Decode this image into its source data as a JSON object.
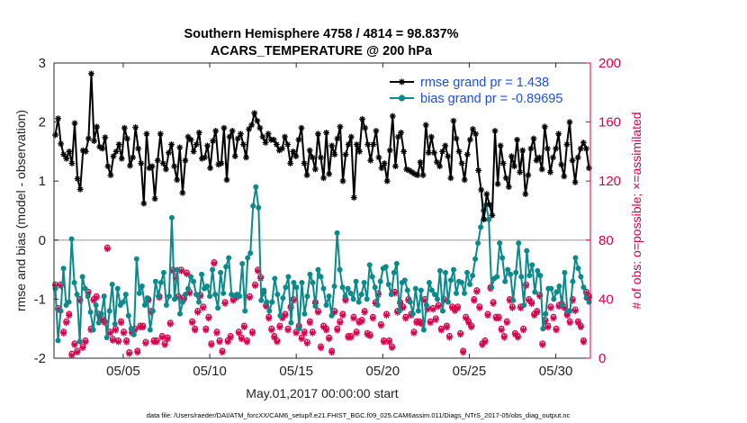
{
  "chart_data": {
    "type": "line",
    "title": "Southern Hemisphere 4758 / 4814 = 98.837%",
    "subtitle": "ACARS_TEMPERATURE @ 200 hPa",
    "xlabel": "May.01,2017 00:00:00 start",
    "ylabel": "rmse and bias (model - observation)",
    "ylabel_right": "# of obs: o=possible; ×=assimilated",
    "x_tick_labels": [
      "05/05",
      "05/10",
      "05/15",
      "05/20",
      "05/25",
      "05/30"
    ],
    "x_tick_days": [
      5,
      10,
      15,
      20,
      25,
      30
    ],
    "xlim": [
      1,
      32
    ],
    "ylim": [
      -2,
      3
    ],
    "y_ticks": [
      "-2",
      "-1",
      "0",
      "1",
      "2",
      "3"
    ],
    "ylim_right": [
      0,
      200
    ],
    "y_ticks_right": [
      "0",
      "40",
      "80",
      "120",
      "160",
      "200"
    ],
    "legend_position": "top-right",
    "colors": {
      "rmse": "#000000",
      "bias": "#0a8a8a",
      "obs": "#d6004c",
      "zero_line": "#b8b8b8"
    },
    "series": [
      {
        "name": "rmse grand pr = 1.438",
        "marker": "star",
        "values": [
          1.78,
          2.06,
          1.63,
          1.45,
          1.38,
          1.5,
          1.3,
          1.98,
          1.04,
          0.86,
          1.52,
          1.5,
          1.72,
          2.82,
          1.68,
          1.92,
          1.58,
          1.55,
          1.74,
          1.25,
          1.1,
          1.42,
          1.5,
          1.62,
          1.38,
          1.9,
          1.72,
          1.26,
          1.4,
          1.91,
          1.55,
          1.3,
          0.62,
          1.8,
          1.22,
          1.25,
          0.7,
          1.35,
          1.8,
          1.3,
          1.2,
          1.48,
          1.62,
          1.25,
          1.02,
          1.57,
          0.8,
          1.35,
          1.75,
          1.7,
          1.5,
          1.62,
          1.82,
          1.38,
          1.4,
          1.6,
          1.22,
          1.68,
          1.85,
          1.28,
          1.3,
          1.9,
          1.02,
          1.75,
          1.85,
          1.42,
          1.72,
          1.8,
          1.62,
          1.4,
          1.88,
          1.95,
          2.15,
          2.02,
          1.9,
          1.75,
          1.65,
          1.8,
          1.7,
          1.7,
          1.62,
          1.52,
          1.55,
          1.75,
          1.62,
          1.3,
          1.5,
          1.42,
          1.7,
          1.9,
          1.3,
          1.1,
          1.52,
          1.4,
          1.2,
          1.8,
          1.4,
          1.05,
          1.82,
          1.12,
          1.6,
          1.45,
          1.72,
          1.92,
          1.0,
          1.45,
          1.62,
          1.75,
          0.72,
          1.62,
          1.5,
          2.05,
          1.9,
          1.62,
          1.35,
          1.62,
          1.85,
          1.4,
          1.22,
          1.3,
          1.0,
          1.52,
          2.1,
          1.25,
          1.75,
          1.82,
          1.5,
          1.2,
          1.18,
          1.15,
          1.12,
          1.1,
          1.32,
          1.1,
          1.95,
          1.48,
          1.75,
          1.48,
          1.32,
          1.25,
          1.5,
          1.6,
          1.42,
          1.05,
          2.02,
          1.72,
          1.5,
          1.3,
          1.02,
          1.45,
          1.7,
          1.88,
          1.8,
          1.18,
          0.85,
          0.35,
          0.78,
          0.6,
          0.42,
          1.85,
          0.95,
          1.6,
          1.3,
          1.05,
          0.9,
          1.42,
          1.25,
          1.7,
          1.15,
          1.52,
          0.78,
          1.1,
          1.55,
          1.72,
          1.35,
          1.4,
          1.2,
          1.92,
          1.55,
          1.15,
          1.4,
          1.55,
          1.8,
          1.28,
          1.08,
          1.62,
          2.0,
          1.35,
          0.98,
          1.4,
          1.55,
          1.65,
          1.55,
          1.22
        ]
      },
      {
        "name": "bias grand pr = -0.89695",
        "marker": "dot",
        "values": [
          -0.82,
          -1.7,
          -1.2,
          -0.48,
          -1.1,
          -1.05,
          0.02,
          -0.72,
          -0.92,
          -1.72,
          -0.62,
          -0.82,
          -0.95,
          -1.22,
          -1.52,
          -1.1,
          -1.4,
          -1.25,
          -0.95,
          -1.65,
          -1.2,
          -0.75,
          -1.42,
          -0.82,
          -1.1,
          -1.05,
          -0.92,
          -1.28,
          -1.5,
          -1.6,
          -0.32,
          -0.9,
          -0.78,
          -1.1,
          -0.98,
          -1.52,
          -1.2,
          -0.7,
          -0.95,
          -0.72,
          -0.55,
          -1.1,
          -0.95,
          0.38,
          -1.0,
          -0.5,
          -1.25,
          -1.05,
          -0.92,
          -0.82,
          -0.62,
          -0.7,
          -0.92,
          -1.05,
          -0.58,
          -0.82,
          -0.78,
          -0.95,
          -0.5,
          -0.92,
          -1.15,
          -0.55,
          -0.9,
          -0.45,
          -0.3,
          -0.92,
          -0.95,
          -0.92,
          -0.95,
          -0.4,
          -1.2,
          -0.3,
          -0.22,
          0.58,
          0.9,
          0.55,
          -1.02,
          -0.85,
          -1.05,
          -1.2,
          -1.05,
          -0.65,
          -0.92,
          -1.28,
          -0.98,
          -0.8,
          -0.62,
          -1.4,
          -0.72,
          -0.8,
          -1.5,
          -0.72,
          -1.25,
          -0.95,
          -0.58,
          -0.72,
          -1.12,
          -0.5,
          -0.62,
          -0.82,
          -1.1,
          -0.95,
          -1.28,
          -0.78,
          0.12,
          -0.5,
          -0.8,
          -0.95,
          -0.82,
          -0.9,
          -1.0,
          -0.7,
          -1.05,
          -0.92,
          -0.72,
          -1.0,
          -0.42,
          -0.62,
          -0.8,
          -1.1,
          -0.7,
          -0.48,
          -0.45,
          -0.75,
          -0.92,
          -0.55,
          -0.4,
          -1.2,
          -0.72,
          -0.68,
          -0.85,
          -1.05,
          -1.25,
          -0.82,
          -1.2,
          -0.85,
          -1.52,
          -1.1,
          -0.72,
          -0.85,
          -0.92,
          -1.0,
          -0.52,
          -1.2,
          -0.55,
          -1.05,
          -0.68,
          -0.5,
          -0.9,
          -0.7,
          -0.72,
          -0.9,
          -0.55,
          -0.75,
          -0.6,
          -0.32,
          -0.05,
          0.22,
          0.5,
          0.6,
          0.35,
          -0.8,
          -0.65,
          -0.62,
          -0.05,
          -0.3,
          -0.7,
          -0.5,
          -0.58,
          -1.02,
          -0.55,
          -0.05,
          -0.62,
          -1.1,
          -0.18,
          -0.6,
          -0.42,
          -0.88,
          -0.52,
          -0.6,
          -1.5,
          -1.25,
          -0.82,
          -0.82,
          -1.0,
          -0.88,
          -0.78,
          -1.1,
          -0.55,
          -1.2,
          -1.2,
          -0.7,
          -0.3,
          -0.48,
          -0.62,
          -0.8,
          -0.98,
          -1.05
        ]
      }
    ],
    "obs_possible": [
      50,
      34,
      50,
      18,
      25,
      30,
      3,
      10,
      5,
      40,
      8,
      12,
      45,
      20,
      40,
      42,
      30,
      27,
      25,
      75,
      18,
      13,
      20,
      12,
      25,
      18,
      12,
      4,
      18,
      20,
      5,
      22,
      22,
      11,
      40,
      32,
      12,
      12,
      42,
      15,
      10,
      14,
      24,
      60,
      55,
      42,
      60,
      41,
      58,
      45,
      25,
      20,
      32,
      43,
      35,
      20,
      28,
      10,
      65,
      18,
      12,
      5,
      38,
      12,
      15,
      40,
      42,
      18,
      14,
      22,
      12,
      42,
      18,
      50,
      60,
      55,
      45,
      36,
      28,
      20,
      15,
      12,
      22,
      28,
      30,
      20,
      35,
      40,
      18,
      22,
      14,
      18,
      11,
      25,
      18,
      38,
      32,
      8,
      22,
      20,
      14,
      5,
      32,
      20,
      25,
      30,
      40,
      15,
      15,
      28,
      18,
      25,
      26,
      32,
      17,
      16,
      28,
      38,
      44,
      23,
      12,
      30,
      12,
      8,
      45,
      32,
      38,
      35,
      28,
      40,
      30,
      18,
      25,
      25,
      24,
      40,
      34,
      25,
      34,
      27,
      36,
      20,
      40,
      22,
      15,
      35,
      33,
      35,
      17,
      5,
      28,
      25,
      22,
      40,
      46,
      35,
      10,
      12,
      30,
      48,
      38,
      28,
      28,
      20,
      15,
      25,
      40,
      35,
      17,
      15,
      35,
      20,
      50,
      40,
      38,
      30,
      32,
      43,
      10,
      26,
      22,
      35,
      28,
      20,
      36,
      37,
      35,
      30,
      25,
      40,
      33,
      25,
      22,
      12,
      45,
      42
    ],
    "obs_assimilated": [
      49,
      33,
      49,
      17,
      24,
      29,
      2,
      9,
      4,
      39,
      7,
      11,
      44,
      19,
      39,
      41,
      29,
      26,
      24,
      74,
      17,
      12,
      19,
      11,
      24,
      17,
      11,
      3,
      17,
      19,
      4,
      21,
      21,
      10,
      39,
      31,
      11,
      11,
      41,
      14,
      9,
      13,
      23,
      59,
      54,
      41,
      59,
      40,
      57,
      44,
      24,
      19,
      31,
      42,
      34,
      19,
      27,
      9,
      64,
      17,
      11,
      4,
      37,
      11,
      14,
      39,
      41,
      17,
      13,
      21,
      11,
      41,
      17,
      49,
      59,
      54,
      44,
      35,
      27,
      19,
      14,
      11,
      21,
      27,
      29,
      19,
      34,
      39,
      17,
      21,
      13,
      17,
      10,
      24,
      17,
      37,
      31,
      7,
      21,
      19,
      13,
      4,
      31,
      19,
      24,
      29,
      39,
      14,
      14,
      27,
      17,
      24,
      25,
      31,
      16,
      15,
      27,
      37,
      43,
      22,
      11,
      29,
      11,
      7,
      44,
      31,
      37,
      34,
      27,
      39,
      29,
      17,
      24,
      24,
      23,
      39,
      33,
      24,
      33,
      26,
      35,
      19,
      39,
      21,
      14,
      34,
      32,
      34,
      16,
      4,
      27,
      24,
      21,
      39,
      45,
      34,
      9,
      11,
      29,
      47,
      37,
      27,
      27,
      19,
      14,
      24,
      39,
      34,
      16,
      14,
      34,
      19,
      49,
      39,
      37,
      29,
      31,
      42,
      9,
      25,
      21,
      34,
      27,
      19,
      35,
      36,
      34,
      29,
      24,
      39,
      32,
      24,
      21,
      11,
      44,
      41
    ]
  },
  "footer": "data file: /Users/raeder/DAI/ATM_forcXX/CAM6_setup/f.e21.FHIST_BGC.f09_025.CAM6assim.011/Diags_NTrS_2017-05/obs_diag_output.nc"
}
